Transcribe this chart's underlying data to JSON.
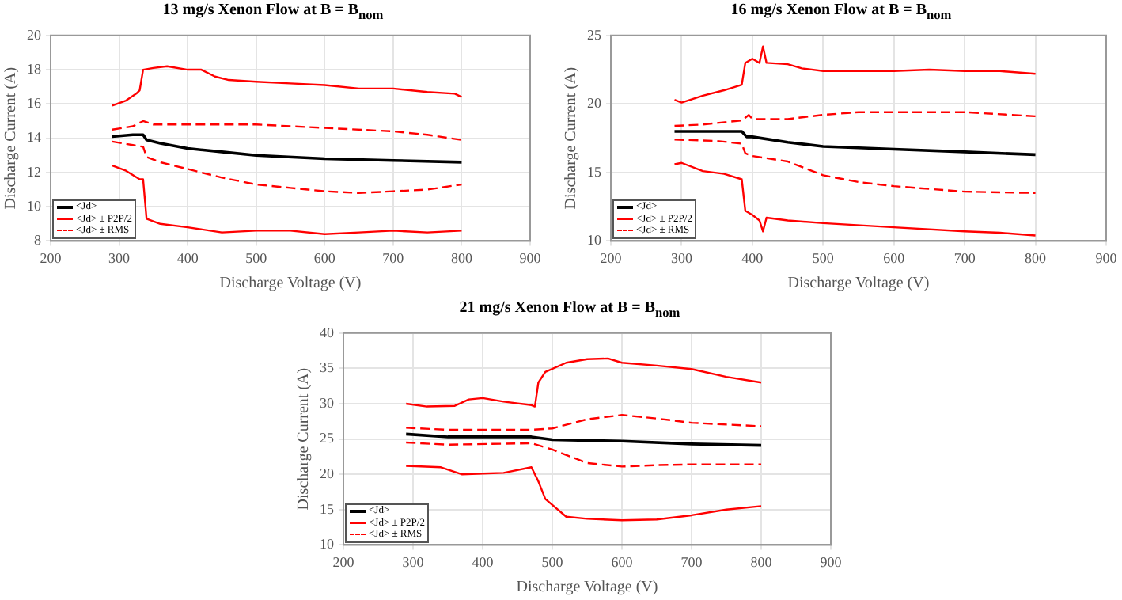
{
  "chart_data": [
    {
      "type": "line",
      "title": "13 mg/s Xenon Flow at B = B$_{nom}$",
      "xlabel": "Discharge Voltage (V)",
      "ylabel": "Discharge Current (A)",
      "xlim": [
        200,
        900
      ],
      "xticks": [
        200,
        300,
        400,
        500,
        600,
        700,
        800,
        900
      ],
      "ylim": [
        8,
        20
      ],
      "yticks": [
        8,
        10,
        12,
        14,
        16,
        18,
        20
      ],
      "grid": true,
      "legend": "bottom left",
      "series": [
        {
          "name": "<Jd>",
          "color": "#000000",
          "line_style": "solid",
          "x": [
            290,
            320,
            335,
            340,
            360,
            400,
            450,
            500,
            600,
            700,
            800
          ],
          "values": [
            14.1,
            14.2,
            14.2,
            13.9,
            13.7,
            13.4,
            13.2,
            13.0,
            12.8,
            12.7,
            12.6
          ]
        },
        {
          "name": "<Jd> ± P2P/2",
          "color": "#ff0000",
          "line_style": "solid",
          "x": [
            290,
            310,
            325,
            330,
            335,
            350,
            370,
            400,
            420,
            440,
            460,
            500,
            550,
            600,
            650,
            700,
            750,
            790,
            800
          ],
          "values": [
            15.9,
            16.2,
            16.6,
            16.8,
            18.0,
            18.1,
            18.2,
            18.0,
            18.0,
            17.6,
            17.4,
            17.3,
            17.2,
            17.1,
            16.9,
            16.9,
            16.7,
            16.6,
            16.4
          ]
        },
        {
          "color": "#ff0000",
          "line_style": "solid",
          "x": [
            290,
            310,
            330,
            335,
            340,
            360,
            400,
            450,
            500,
            550,
            600,
            650,
            700,
            750,
            800
          ],
          "values": [
            12.4,
            12.1,
            11.6,
            11.6,
            9.3,
            9.0,
            8.8,
            8.5,
            8.6,
            8.6,
            8.4,
            8.5,
            8.6,
            8.5,
            8.6
          ]
        },
        {
          "name": "<Jd> ± RMS",
          "color": "#ff0000",
          "line_style": "dashed",
          "x": [
            290,
            320,
            335,
            350,
            400,
            500,
            600,
            700,
            750,
            800
          ],
          "values": [
            14.5,
            14.7,
            15.0,
            14.8,
            14.8,
            14.8,
            14.6,
            14.4,
            14.2,
            13.9
          ]
        },
        {
          "color": "#ff0000",
          "line_style": "dashed",
          "x": [
            290,
            320,
            335,
            340,
            360,
            400,
            450,
            500,
            550,
            600,
            650,
            700,
            750,
            800
          ],
          "values": [
            13.8,
            13.6,
            13.5,
            12.9,
            12.6,
            12.2,
            11.7,
            11.3,
            11.1,
            10.9,
            10.8,
            10.9,
            11.0,
            11.3
          ]
        }
      ]
    },
    {
      "type": "line",
      "title": "16 mg/s Xenon Flow at B = B$_{nom}$",
      "xlabel": "Discharge Voltage (V)",
      "ylabel": "Discharge Current (A)",
      "xlim": [
        200,
        900
      ],
      "xticks": [
        200,
        300,
        400,
        500,
        600,
        700,
        800,
        900
      ],
      "ylim": [
        10,
        25
      ],
      "yticks": [
        10,
        15,
        20,
        25
      ],
      "grid": true,
      "legend": "bottom left",
      "series": [
        {
          "name": "<Jd>",
          "color": "#000000",
          "line_style": "solid",
          "x": [
            290,
            350,
            385,
            392,
            400,
            450,
            500,
            600,
            700,
            800
          ],
          "values": [
            18.0,
            18.0,
            18.0,
            17.6,
            17.6,
            17.2,
            16.9,
            16.7,
            16.5,
            16.3
          ]
        },
        {
          "name": "<Jd> ± P2P/2",
          "color": "#ff0000",
          "line_style": "solid",
          "x": [
            290,
            300,
            330,
            360,
            385,
            390,
            400,
            410,
            415,
            420,
            450,
            470,
            500,
            600,
            650,
            700,
            750,
            800
          ],
          "values": [
            20.3,
            20.1,
            20.6,
            21.0,
            21.4,
            23.0,
            23.3,
            23.0,
            24.2,
            23.0,
            22.9,
            22.6,
            22.4,
            22.4,
            22.5,
            22.4,
            22.4,
            22.2
          ]
        },
        {
          "color": "#ff0000",
          "line_style": "solid",
          "x": [
            290,
            300,
            330,
            360,
            385,
            390,
            400,
            410,
            415,
            420,
            450,
            500,
            600,
            700,
            750,
            800
          ],
          "values": [
            15.6,
            15.7,
            15.1,
            14.9,
            14.5,
            12.2,
            11.9,
            11.5,
            10.7,
            11.7,
            11.5,
            11.3,
            11.0,
            10.7,
            10.6,
            10.4
          ]
        },
        {
          "name": "<Jd> ± RMS",
          "color": "#ff0000",
          "line_style": "dashed",
          "x": [
            290,
            330,
            385,
            395,
            400,
            450,
            500,
            550,
            600,
            700,
            800
          ],
          "values": [
            18.4,
            18.5,
            18.8,
            19.2,
            18.9,
            18.9,
            19.2,
            19.4,
            19.4,
            19.4,
            19.1
          ]
        },
        {
          "color": "#ff0000",
          "line_style": "dashed",
          "x": [
            290,
            350,
            385,
            390,
            400,
            450,
            500,
            550,
            600,
            700,
            800
          ],
          "values": [
            17.4,
            17.3,
            17.1,
            16.4,
            16.2,
            15.8,
            14.8,
            14.3,
            14.0,
            13.6,
            13.5
          ]
        }
      ]
    },
    {
      "type": "line",
      "title": "21 mg/s Xenon Flow at B = B$_{nom}$",
      "xlabel": "Discharge Voltage (V)",
      "ylabel": "Discharge Current (A)",
      "xlim": [
        200,
        900
      ],
      "xticks": [
        200,
        300,
        400,
        500,
        600,
        700,
        800,
        900
      ],
      "ylim": [
        10,
        40
      ],
      "yticks": [
        10,
        15,
        20,
        25,
        30,
        35,
        40
      ],
      "grid": true,
      "legend": "bottom left",
      "series": [
        {
          "name": "<Jd>",
          "color": "#000000",
          "line_style": "solid",
          "x": [
            290,
            350,
            470,
            500,
            600,
            700,
            800
          ],
          "values": [
            25.7,
            25.3,
            25.3,
            24.9,
            24.7,
            24.3,
            24.1
          ]
        },
        {
          "name": "<Jd> ± P2P/2",
          "color": "#ff0000",
          "line_style": "solid",
          "x": [
            290,
            320,
            360,
            380,
            400,
            430,
            470,
            475,
            480,
            490,
            520,
            550,
            580,
            600,
            650,
            700,
            750,
            800
          ],
          "values": [
            30.0,
            29.6,
            29.7,
            30.6,
            30.8,
            30.3,
            29.8,
            29.6,
            33.0,
            34.5,
            35.8,
            36.3,
            36.4,
            35.8,
            35.4,
            34.9,
            33.8,
            33.0
          ]
        },
        {
          "color": "#ff0000",
          "line_style": "solid",
          "x": [
            290,
            340,
            370,
            400,
            430,
            470,
            480,
            490,
            520,
            550,
            600,
            650,
            700,
            750,
            800
          ],
          "values": [
            21.2,
            21.0,
            20.0,
            20.1,
            20.2,
            21.0,
            19.0,
            16.5,
            14.0,
            13.7,
            13.5,
            13.6,
            14.2,
            15.0,
            15.5
          ]
        },
        {
          "name": "<Jd> ± RMS",
          "color": "#ff0000",
          "line_style": "dashed",
          "x": [
            290,
            350,
            470,
            500,
            550,
            600,
            650,
            700,
            800
          ],
          "values": [
            26.6,
            26.3,
            26.3,
            26.5,
            27.8,
            28.4,
            27.9,
            27.3,
            26.8
          ]
        },
        {
          "color": "#ff0000",
          "line_style": "dashed",
          "x": [
            290,
            350,
            470,
            500,
            550,
            600,
            650,
            700,
            800
          ],
          "values": [
            24.5,
            24.2,
            24.4,
            23.5,
            21.6,
            21.1,
            21.3,
            21.4,
            21.4
          ]
        }
      ]
    }
  ]
}
